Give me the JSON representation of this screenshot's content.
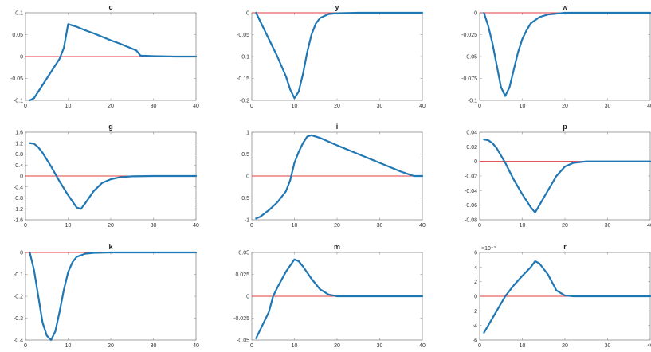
{
  "colors": {
    "series": "#1f77b4",
    "zero_line": "#e03c3c",
    "axes": "#8c8c8c"
  },
  "chart_data": [
    {
      "type": "line",
      "title": "c",
      "xlim": [
        0,
        40
      ],
      "ylim": [
        -0.1,
        0.1
      ],
      "xticks": [
        0,
        10,
        20,
        30,
        40
      ],
      "yticks": [
        -0.1,
        -0.05,
        0,
        0.05,
        0.1
      ],
      "ytick_labels": [
        "-0.1",
        "-0.05",
        "0",
        "0.05",
        "0.1"
      ],
      "zero_line": 0,
      "x": [
        1,
        2,
        4,
        6,
        8,
        9,
        10,
        12,
        14,
        16,
        18,
        20,
        22,
        24,
        26,
        27,
        30,
        35,
        40
      ],
      "y": [
        -0.1,
        -0.095,
        -0.065,
        -0.035,
        -0.005,
        0.02,
        0.074,
        0.068,
        0.06,
        0.053,
        0.045,
        0.037,
        0.03,
        0.022,
        0.014,
        0.002,
        0.001,
        0.0,
        0.0
      ]
    },
    {
      "type": "line",
      "title": "y",
      "xlim": [
        0,
        40
      ],
      "ylim": [
        -0.2,
        0
      ],
      "xticks": [
        0,
        10,
        20,
        30,
        40
      ],
      "yticks": [
        -0.2,
        -0.15,
        -0.1,
        -0.05,
        0
      ],
      "ytick_labels": [
        "-0.2",
        "-0.15",
        "-0.1",
        "-0.05",
        "0"
      ],
      "zero_line": 0,
      "x": [
        1,
        2,
        4,
        6,
        8,
        9,
        10,
        11,
        12,
        13,
        14,
        15,
        16,
        18,
        20,
        25,
        30,
        40
      ],
      "y": [
        0.0,
        -0.02,
        -0.06,
        -0.1,
        -0.145,
        -0.175,
        -0.195,
        -0.18,
        -0.14,
        -0.09,
        -0.05,
        -0.025,
        -0.012,
        -0.003,
        -0.001,
        0.0,
        0.0,
        0.0
      ]
    },
    {
      "type": "line",
      "title": "w",
      "xlim": [
        0,
        40
      ],
      "ylim": [
        -0.1,
        0
      ],
      "xticks": [
        0,
        10,
        20,
        30,
        40
      ],
      "yticks": [
        -0.1,
        -0.075,
        -0.05,
        -0.025,
        0
      ],
      "ytick_labels": [
        "-0.1",
        "-0.075",
        "-0.05",
        "-0.025",
        "0"
      ],
      "zero_line": 0,
      "x": [
        1,
        2,
        3,
        4,
        5,
        6,
        7,
        8,
        9,
        10,
        11,
        12,
        14,
        16,
        20,
        30,
        40
      ],
      "y": [
        0.0,
        -0.015,
        -0.035,
        -0.06,
        -0.085,
        -0.095,
        -0.085,
        -0.065,
        -0.045,
        -0.03,
        -0.02,
        -0.012,
        -0.005,
        -0.002,
        0.0,
        0.0,
        0.0
      ]
    },
    {
      "type": "line",
      "title": "g",
      "xlim": [
        0,
        40
      ],
      "ylim": [
        -1.6,
        1.6
      ],
      "xticks": [
        0,
        10,
        20,
        30,
        40
      ],
      "yticks": [
        -1.6,
        -1.2,
        -0.8,
        -0.4,
        0,
        0.4,
        0.8,
        1.2,
        1.6
      ],
      "ytick_labels": [
        "-1.6",
        "-1.2",
        "-0.8",
        "-0.4",
        "0",
        "0.4",
        "0.8",
        "1.2",
        "1.6"
      ],
      "zero_line": 0,
      "x": [
        1,
        2,
        3,
        4,
        6,
        8,
        10,
        12,
        13,
        14,
        16,
        18,
        20,
        22,
        25,
        30,
        40
      ],
      "y": [
        1.2,
        1.18,
        1.05,
        0.85,
        0.35,
        -0.2,
        -0.7,
        -1.15,
        -1.2,
        -1.0,
        -0.55,
        -0.25,
        -0.12,
        -0.05,
        -0.01,
        0.0,
        0.0
      ]
    },
    {
      "type": "line",
      "title": "i",
      "xlim": [
        0,
        40
      ],
      "ylim": [
        -1,
        1
      ],
      "xticks": [
        0,
        10,
        20,
        30,
        40
      ],
      "yticks": [
        -1,
        -0.5,
        0,
        0.5,
        1
      ],
      "ytick_labels": [
        "-1",
        "-0.5",
        "0",
        "0.5",
        "1"
      ],
      "zero_line": 0,
      "x": [
        1,
        2,
        4,
        6,
        8,
        9,
        10,
        11,
        12,
        13,
        14,
        16,
        20,
        25,
        30,
        35,
        38,
        40
      ],
      "y": [
        -0.97,
        -0.93,
        -0.78,
        -0.6,
        -0.35,
        -0.1,
        0.3,
        0.55,
        0.75,
        0.9,
        0.93,
        0.87,
        0.7,
        0.5,
        0.3,
        0.1,
        0.0,
        0.0
      ]
    },
    {
      "type": "line",
      "title": "p",
      "xlim": [
        0,
        40
      ],
      "ylim": [
        -0.08,
        0.04
      ],
      "xticks": [
        0,
        10,
        20,
        30,
        40
      ],
      "yticks": [
        -0.08,
        -0.06,
        -0.04,
        -0.02,
        0,
        0.02,
        0.04
      ],
      "ytick_labels": [
        "-0.08",
        "-0.06",
        "-0.04",
        "-0.02",
        "0",
        "0.02",
        "0.04"
      ],
      "zero_line": 0,
      "x": [
        1,
        2,
        3,
        4,
        6,
        8,
        10,
        12,
        13,
        14,
        16,
        18,
        20,
        22,
        25,
        30,
        40
      ],
      "y": [
        0.03,
        0.029,
        0.025,
        0.018,
        -0.002,
        -0.025,
        -0.045,
        -0.063,
        -0.07,
        -0.06,
        -0.04,
        -0.02,
        -0.007,
        -0.002,
        0.0,
        0.0,
        0.0
      ]
    },
    {
      "type": "line",
      "title": "k",
      "xlim": [
        0,
        40
      ],
      "ylim": [
        -0.4,
        0
      ],
      "xticks": [
        0,
        10,
        20,
        30,
        40
      ],
      "yticks": [
        -0.4,
        -0.3,
        -0.2,
        -0.1,
        0
      ],
      "ytick_labels": [
        "-0.4",
        "-0.3",
        "-0.2",
        "-0.1",
        "0"
      ],
      "zero_line": 0,
      "x": [
        1,
        2,
        3,
        4,
        5,
        6,
        7,
        8,
        9,
        10,
        11,
        12,
        14,
        16,
        20,
        30,
        40
      ],
      "y": [
        0.0,
        -0.08,
        -0.2,
        -0.32,
        -0.38,
        -0.4,
        -0.36,
        -0.27,
        -0.17,
        -0.09,
        -0.045,
        -0.02,
        -0.006,
        -0.002,
        0.0,
        0.0,
        0.0
      ]
    },
    {
      "type": "line",
      "title": "m",
      "xlim": [
        0,
        40
      ],
      "ylim": [
        -0.05,
        0.05
      ],
      "xticks": [
        0,
        10,
        20,
        30,
        40
      ],
      "yticks": [
        -0.05,
        -0.025,
        0,
        0.025,
        0.05
      ],
      "ytick_labels": [
        "-0.05",
        "-0.025",
        "0",
        "0.025",
        "0.05"
      ],
      "zero_line": 0,
      "x": [
        1,
        2,
        4,
        5,
        6,
        8,
        10,
        11,
        12,
        14,
        16,
        18,
        20,
        25,
        30,
        40
      ],
      "y": [
        -0.048,
        -0.038,
        -0.018,
        0.0,
        0.01,
        0.028,
        0.042,
        0.04,
        0.034,
        0.02,
        0.008,
        0.002,
        0.0,
        0.0,
        0.0,
        0.0
      ]
    },
    {
      "type": "line",
      "title": "r",
      "xlim": [
        0,
        40
      ],
      "ylim": [
        -6,
        6
      ],
      "exponent_label": "×10⁻³",
      "xticks": [
        0,
        10,
        20,
        30,
        40
      ],
      "yticks": [
        -6,
        -4,
        -2,
        0,
        2,
        4,
        6
      ],
      "ytick_labels": [
        "-6",
        "-4",
        "-2",
        "0",
        "2",
        "4",
        "6"
      ],
      "zero_line": 0,
      "x": [
        1,
        2,
        4,
        6,
        8,
        10,
        12,
        13,
        14,
        16,
        18,
        20,
        22,
        25,
        30,
        40
      ],
      "y": [
        -5.0,
        -4.0,
        -2.0,
        0.0,
        1.5,
        2.8,
        4.0,
        4.8,
        4.5,
        3.0,
        0.8,
        0.1,
        0.0,
        0.0,
        0.0,
        0.0
      ]
    }
  ]
}
